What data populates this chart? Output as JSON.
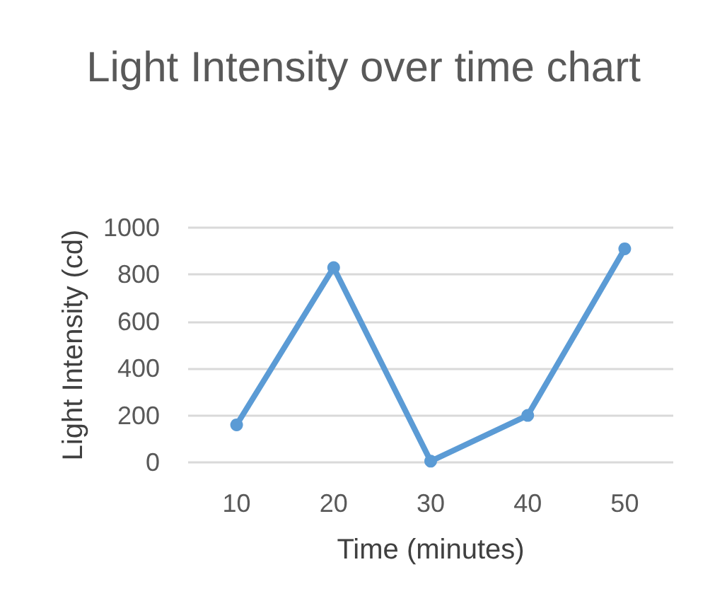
{
  "chart_data": {
    "type": "line",
    "title": "Light Intensity over time chart",
    "xlabel": "Time (minutes)",
    "ylabel": "Light Intensity (cd)",
    "categories": [
      "10",
      "20",
      "30",
      "40",
      "50"
    ],
    "series": [
      {
        "color": "#5b9bd5",
        "values": [
          160,
          830,
          5,
          200,
          910
        ]
      }
    ],
    "ylim": [
      0,
      1000
    ],
    "yticks": [
      0,
      200,
      400,
      600,
      800,
      1000
    ],
    "grid": "y",
    "marker": "circle",
    "line_style": "solid"
  }
}
